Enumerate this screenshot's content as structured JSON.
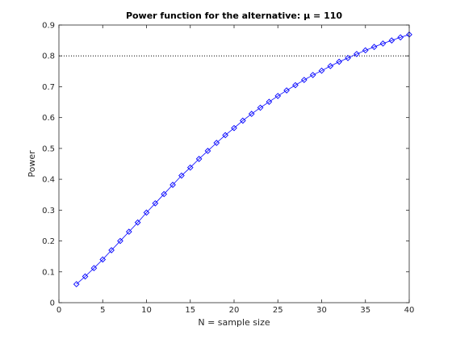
{
  "chart_data": {
    "type": "line",
    "title": "Power function for the alternative: μ = 110",
    "xlabel": "N = sample size",
    "ylabel": "Power",
    "xlim": [
      0,
      40
    ],
    "ylim": [
      0,
      0.9
    ],
    "xticks": [
      0,
      5,
      10,
      15,
      20,
      25,
      30,
      35,
      40
    ],
    "yticks": [
      0,
      0.1,
      0.2,
      0.3,
      0.4,
      0.5,
      0.6,
      0.7,
      0.8,
      0.9
    ],
    "grid": false,
    "reference_line": {
      "y": 0.8,
      "style": "dotted",
      "color": "#000000"
    },
    "series": [
      {
        "color": "#0000ff",
        "marker": "diamond",
        "x": [
          2,
          3,
          4,
          5,
          6,
          7,
          8,
          9,
          10,
          11,
          12,
          13,
          14,
          15,
          16,
          17,
          18,
          19,
          20,
          21,
          22,
          23,
          24,
          25,
          26,
          27,
          28,
          29,
          30,
          31,
          32,
          33,
          34,
          35,
          36,
          37,
          38,
          39,
          40
        ],
        "values": [
          0.06,
          0.085,
          0.112,
          0.14,
          0.17,
          0.2,
          0.23,
          0.26,
          0.292,
          0.322,
          0.352,
          0.382,
          0.412,
          0.438,
          0.466,
          0.492,
          0.518,
          0.543,
          0.566,
          0.59,
          0.612,
          0.632,
          0.651,
          0.67,
          0.688,
          0.705,
          0.722,
          0.738,
          0.752,
          0.767,
          0.781,
          0.793,
          0.806,
          0.818,
          0.829,
          0.84,
          0.85,
          0.86,
          0.869
        ]
      }
    ]
  }
}
